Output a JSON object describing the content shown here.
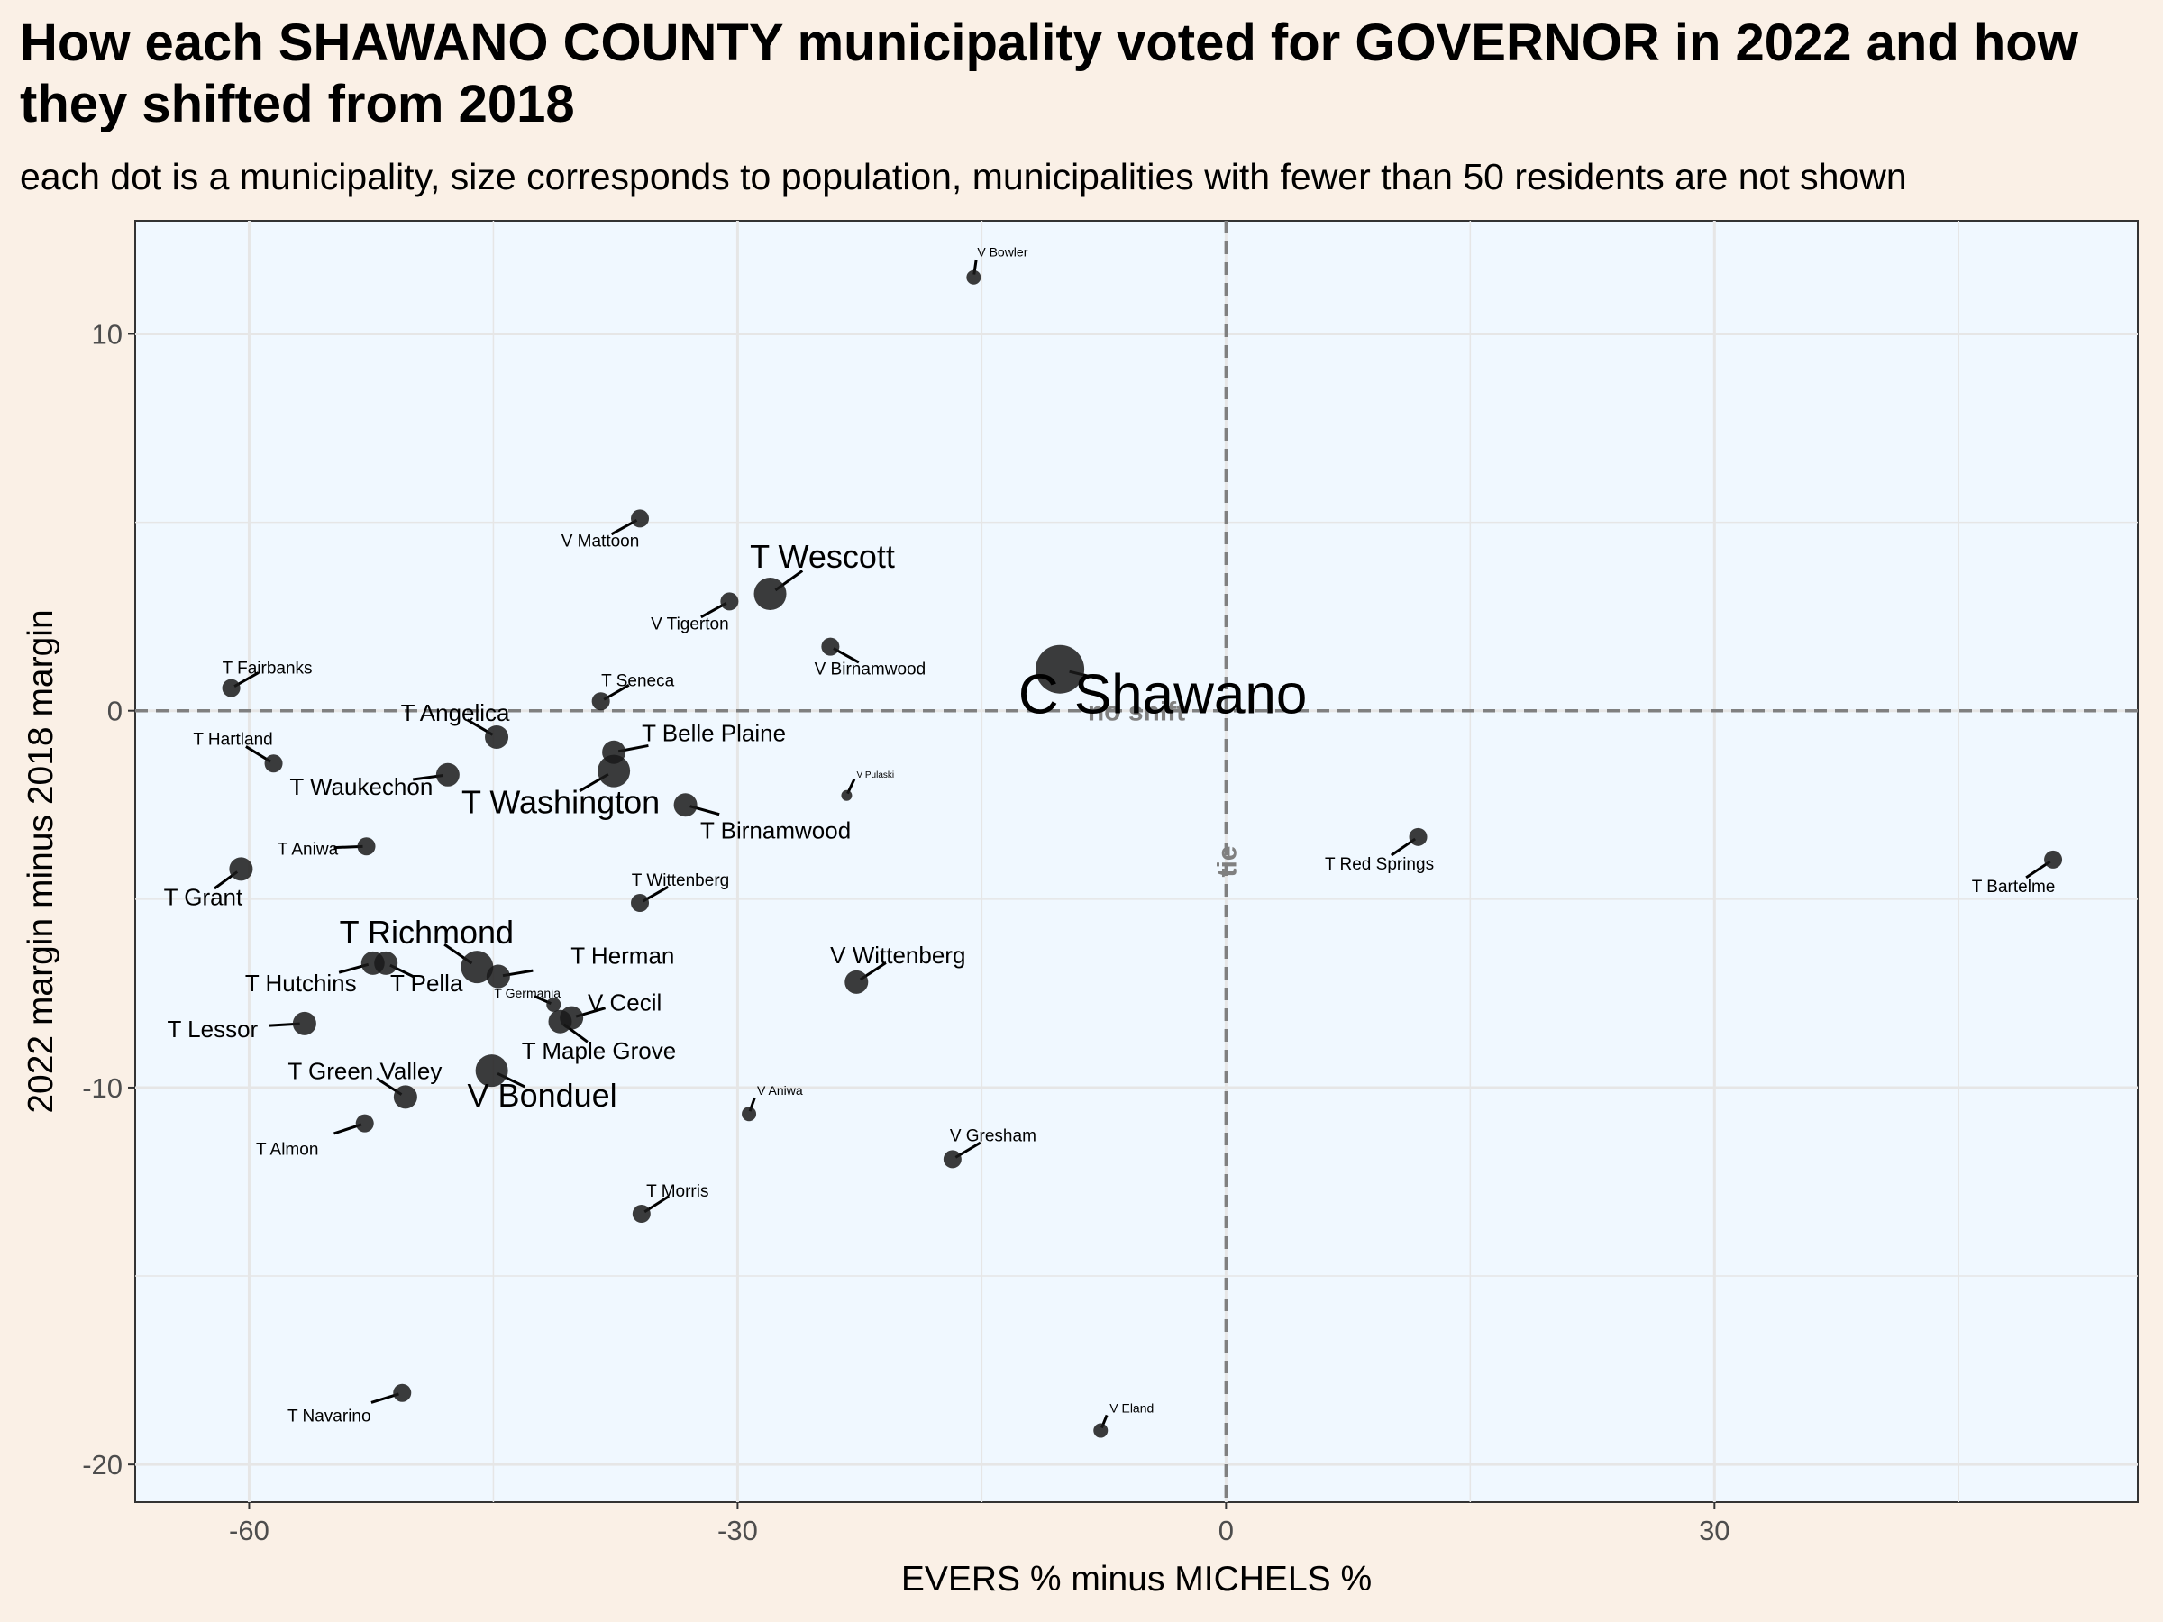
{
  "title": "How each SHAWANO COUNTY municipality voted for GOVERNOR in 2022 and how they shifted from 2018",
  "subtitle": "each dot is a municipality, size corresponds to population, municipalities with fewer than 50 residents are not shown",
  "colors": {
    "page_background": "#faf0e6",
    "panel_background": "#f0f8ff",
    "grid": "#e6e6e6",
    "point": "#1a1a1a",
    "reference_line": "#808080"
  },
  "chart_data": {
    "type": "scatter",
    "title": "How each SHAWANO COUNTY municipality voted for GOVERNOR in 2022 and how they shifted from 2018",
    "subtitle": "each dot is a municipality, size corresponds to population, municipalities with fewer than 50 residents are not shown",
    "xlabel": "EVERS % minus MICHELS %",
    "ylabel": "2022 margin minus 2018 margin",
    "xlim": [
      -67,
      56
    ],
    "ylim": [
      -21,
      13
    ],
    "x_ticks": [
      -60,
      -30,
      0,
      30
    ],
    "y_ticks": [
      -20,
      -10,
      0,
      10
    ],
    "grid": true,
    "reference_lines": [
      {
        "axis": "x",
        "value": 0,
        "label": "tie",
        "style": "dashed"
      },
      {
        "axis": "y",
        "value": 0,
        "label": "no shift",
        "style": "dashed"
      }
    ],
    "points": [
      {
        "name": "V Bowler",
        "x": -15.5,
        "y": 11.5,
        "size": "tiny"
      },
      {
        "name": "V Mattoon",
        "x": -36,
        "y": 5.1,
        "size": "small"
      },
      {
        "name": "T Wescott",
        "x": -28,
        "y": 3.1,
        "size": "large"
      },
      {
        "name": "V Tigerton",
        "x": -30.5,
        "y": 2.9,
        "size": "small"
      },
      {
        "name": "V Birnamwood",
        "x": -24.3,
        "y": 1.7,
        "size": "small"
      },
      {
        "name": "C Shawano",
        "x": -10.2,
        "y": 1.1,
        "size": "xlarge"
      },
      {
        "name": "T Fairbanks",
        "x": -61.1,
        "y": 0.6,
        "size": "small"
      },
      {
        "name": "T Seneca",
        "x": -38.4,
        "y": 0.25,
        "size": "small"
      },
      {
        "name": "T Angelica",
        "x": -44.8,
        "y": -0.7,
        "size": "medium"
      },
      {
        "name": "T Belle Plaine",
        "x": -37.6,
        "y": -1.1,
        "size": "medium"
      },
      {
        "name": "T Hartland",
        "x": -58.5,
        "y": -1.4,
        "size": "small"
      },
      {
        "name": "T Washington",
        "x": -37.6,
        "y": -1.6,
        "size": "large"
      },
      {
        "name": "T Waukechon",
        "x": -47.8,
        "y": -1.7,
        "size": "medium"
      },
      {
        "name": "V Pulaski",
        "x": -23.3,
        "y": -2.25,
        "size": "micro"
      },
      {
        "name": "T Birnamwood",
        "x": -33.2,
        "y": -2.5,
        "size": "medium"
      },
      {
        "name": "T Red Springs",
        "x": 11.8,
        "y": -3.35,
        "size": "small"
      },
      {
        "name": "T Aniwa",
        "x": -52.8,
        "y": -3.6,
        "size": "small"
      },
      {
        "name": "T Bartelme",
        "x": 50.8,
        "y": -3.95,
        "size": "small"
      },
      {
        "name": "T Grant",
        "x": -60.5,
        "y": -4.2,
        "size": "medium"
      },
      {
        "name": "T Wittenberg",
        "x": -36,
        "y": -5.1,
        "size": "small"
      },
      {
        "name": "T Richmond",
        "x": -46,
        "y": -6.8,
        "size": "large"
      },
      {
        "name": "T Hutchins",
        "x": -52.4,
        "y": -6.7,
        "size": "medium"
      },
      {
        "name": "T Pella",
        "x": -51.6,
        "y": -6.7,
        "size": "medium"
      },
      {
        "name": "T Herman",
        "x": -44.7,
        "y": -7.05,
        "size": "medium"
      },
      {
        "name": "V Wittenberg",
        "x": -22.7,
        "y": -7.2,
        "size": "medium"
      },
      {
        "name": "T Germania",
        "x": -41.3,
        "y": -7.8,
        "size": "tiny"
      },
      {
        "name": "V Cecil",
        "x": -40.2,
        "y": -8.15,
        "size": "medium"
      },
      {
        "name": "T Maple Grove",
        "x": -40.9,
        "y": -8.25,
        "size": "medium"
      },
      {
        "name": "T Lessor",
        "x": -56.6,
        "y": -8.3,
        "size": "medium"
      },
      {
        "name": "V Bonduel",
        "x": -45.1,
        "y": -9.55,
        "size": "large"
      },
      {
        "name": "T Green Valley",
        "x": -50.4,
        "y": -10.25,
        "size": "medium"
      },
      {
        "name": "V Aniwa",
        "x": -29.3,
        "y": -10.7,
        "size": "tiny"
      },
      {
        "name": "T Almon",
        "x": -52.9,
        "y": -10.95,
        "size": "small"
      },
      {
        "name": "V Gresham",
        "x": -16.8,
        "y": -11.9,
        "size": "small"
      },
      {
        "name": "T Morris",
        "x": -35.9,
        "y": -13.35,
        "size": "small"
      },
      {
        "name": "T Navarino",
        "x": -50.6,
        "y": -18.1,
        "size": "small"
      },
      {
        "name": "V Eland",
        "x": -7.7,
        "y": -19.1,
        "size": "tiny"
      }
    ]
  }
}
